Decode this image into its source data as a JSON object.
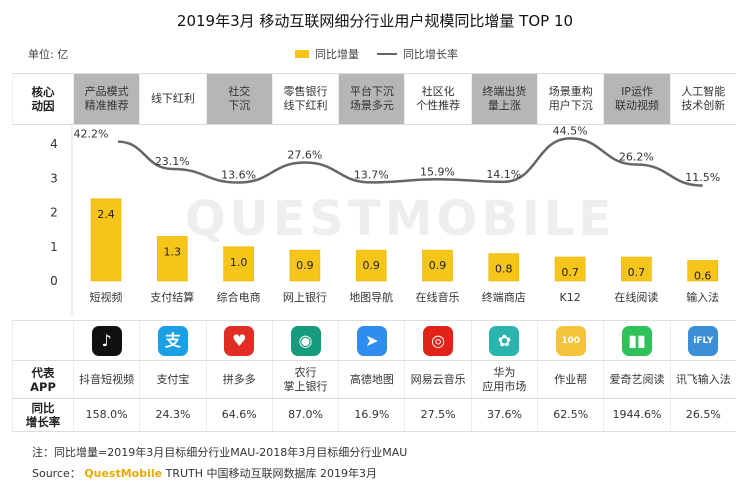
{
  "title": "2019年3月 移动互联网细分行业用户规模同比增量 TOP 10",
  "unit": "单位: 亿",
  "legend": {
    "bar": "同比增量",
    "line": "同比增长率"
  },
  "colors": {
    "bar": "#f6c51a",
    "bar_border": "#e9b200",
    "line": "#666666",
    "gray_cell": "#b6b6b6"
  },
  "drivers_label": "核心\n动因",
  "drivers": [
    {
      "text": "产品模式\n精准推荐",
      "shaded": true
    },
    {
      "text": "线下红利",
      "shaded": false
    },
    {
      "text": "社交\n下沉",
      "shaded": true
    },
    {
      "text": "零售银行\n线下红利",
      "shaded": false
    },
    {
      "text": "平台下沉\n场景多元",
      "shaded": true
    },
    {
      "text": "社区化\n个性推荐",
      "shaded": false
    },
    {
      "text": "终端出货\n量上涨",
      "shaded": true
    },
    {
      "text": "场景重构\n用户下沉",
      "shaded": false
    },
    {
      "text": "IP运作\n联动视频",
      "shaded": true
    },
    {
      "text": "人工智能\n技术创新",
      "shaded": false
    }
  ],
  "chart_data": {
    "type": "bar",
    "categories": [
      "短视频",
      "支付结算",
      "综合电商",
      "网上银行",
      "地图导航",
      "在线音乐",
      "终端商店",
      "K12",
      "在线阅读",
      "输入法"
    ],
    "ylim": [
      0,
      4
    ],
    "yticks": [
      "0",
      "1",
      "2",
      "3",
      "4"
    ],
    "series": [
      {
        "name": "同比增量",
        "type": "bar",
        "values": [
          2.4,
          1.3,
          1.0,
          0.9,
          0.9,
          0.9,
          0.8,
          0.7,
          0.7,
          0.6
        ],
        "labels": [
          "2.4",
          "1.3",
          "1.0",
          "0.9",
          "0.9",
          "0.9",
          "0.8",
          "0.7",
          "0.7",
          "0.6"
        ]
      },
      {
        "name": "同比增长率",
        "type": "line",
        "values": [
          42.2,
          23.1,
          13.6,
          27.6,
          13.7,
          15.9,
          14.1,
          44.5,
          26.2,
          11.5
        ],
        "labels": [
          "42.2%",
          "23.1%",
          "13.6%",
          "27.6%",
          "13.7%",
          "15.9%",
          "14.1%",
          "44.5%",
          "26.2%",
          "11.5%"
        ]
      }
    ]
  },
  "apps_label": "代表\nAPP",
  "apps": [
    {
      "name": "抖音短视频",
      "icon": "douyin-icon",
      "color": "#111111",
      "glyph": "♪"
    },
    {
      "name": "支付宝",
      "icon": "alipay-icon",
      "color": "#1aa0e6",
      "glyph": "支"
    },
    {
      "name": "拼多多",
      "icon": "pinduoduo-icon",
      "color": "#e02e24",
      "glyph": "♥"
    },
    {
      "name": "农行\n掌上银行",
      "icon": "abc-bank-icon",
      "color": "#169b7c",
      "glyph": "◉"
    },
    {
      "name": "高德地图",
      "icon": "amap-icon",
      "color": "#2f8df0",
      "glyph": "➤"
    },
    {
      "name": "网易云音乐",
      "icon": "netease-music-icon",
      "color": "#e2231a",
      "glyph": "◎"
    },
    {
      "name": "华为\n应用市场",
      "icon": "huawei-appgallery-icon",
      "color": "#2bb3b0",
      "glyph": "✿"
    },
    {
      "name": "作业帮",
      "icon": "zuoyebang-icon",
      "color": "#f3c33a",
      "glyph": "100"
    },
    {
      "name": "爱奇艺阅读",
      "icon": "iqiyi-reading-icon",
      "color": "#2fc25b",
      "glyph": "▮▮"
    },
    {
      "name": "讯飞输入法",
      "icon": "iflytek-input-icon",
      "color": "#3a8fd6",
      "glyph": "iFLY"
    }
  ],
  "growth_label": "同比\n增长率",
  "app_growth": [
    "158.0%",
    "24.3%",
    "64.6%",
    "87.0%",
    "16.9%",
    "27.5%",
    "37.6%",
    "62.5%",
    "1944.6%",
    "26.5%"
  ],
  "note": "注：同比增量=2019年3月目标细分行业MAU-2018年3月目标细分行业MAU",
  "source": {
    "prefix": "Source：",
    "brand": "QuestMobile",
    "rest": "TRUTH 中国移动互联网数据库 2019年3月"
  }
}
